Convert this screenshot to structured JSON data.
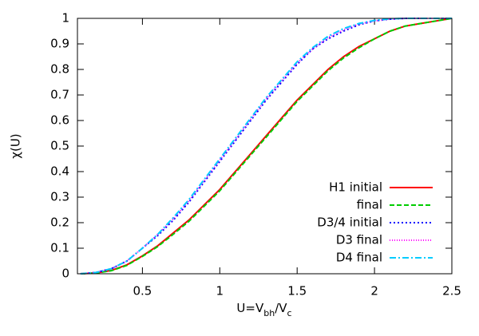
{
  "chart_data": {
    "type": "line",
    "ylabel": "χ(U)",
    "xlabel": [
      "U=V",
      "bh",
      "/V",
      "c"
    ],
    "x": [
      0.1,
      0.2,
      0.3,
      0.4,
      0.5,
      0.6,
      0.7,
      0.8,
      0.9,
      1.0,
      1.1,
      1.2,
      1.3,
      1.4,
      1.5,
      1.6,
      1.7,
      1.8,
      1.9,
      2.0,
      2.1,
      2.2,
      2.3,
      2.4,
      2.5
    ],
    "series": [
      {
        "name": "H1 initial",
        "color": "#ff0000",
        "style": "solid",
        "values": [
          0,
          0.003,
          0.013,
          0.035,
          0.07,
          0.11,
          0.16,
          0.21,
          0.27,
          0.33,
          0.4,
          0.47,
          0.54,
          0.61,
          0.68,
          0.74,
          0.8,
          0.85,
          0.89,
          0.92,
          0.95,
          0.97,
          0.98,
          0.99,
          1.0
        ]
      },
      {
        "name": "final",
        "color": "#00cc00",
        "style": "dashed",
        "values": [
          0,
          0.003,
          0.012,
          0.033,
          0.068,
          0.107,
          0.155,
          0.205,
          0.265,
          0.325,
          0.395,
          0.465,
          0.535,
          0.605,
          0.675,
          0.735,
          0.795,
          0.845,
          0.885,
          0.92,
          0.95,
          0.97,
          0.98,
          0.99,
          1.0
        ]
      },
      {
        "name": "D3/4 initial",
        "color": "#0000ff",
        "style": "dotted",
        "values": [
          0,
          0.005,
          0.02,
          0.05,
          0.1,
          0.15,
          0.21,
          0.28,
          0.36,
          0.44,
          0.52,
          0.6,
          0.68,
          0.75,
          0.82,
          0.88,
          0.92,
          0.95,
          0.975,
          0.99,
          0.997,
          1,
          1,
          1,
          1
        ]
      },
      {
        "name": "D3 final",
        "color": "#ff00ff",
        "style": "finedot",
        "values": [
          0,
          0.005,
          0.02,
          0.05,
          0.1,
          0.155,
          0.215,
          0.285,
          0.365,
          0.445,
          0.525,
          0.605,
          0.685,
          0.755,
          0.825,
          0.88,
          0.925,
          0.955,
          0.978,
          0.99,
          0.997,
          1,
          1,
          1,
          1
        ]
      },
      {
        "name": "D4 final",
        "color": "#00ccff",
        "style": "dashdot",
        "values": [
          0,
          0.005,
          0.02,
          0.05,
          0.1,
          0.155,
          0.22,
          0.29,
          0.37,
          0.45,
          0.53,
          0.61,
          0.69,
          0.76,
          0.83,
          0.885,
          0.93,
          0.96,
          0.98,
          0.992,
          0.998,
          1,
          1,
          1,
          1
        ]
      }
    ],
    "xlim": [
      0.08,
      2.5
    ],
    "ylim": [
      0,
      1
    ],
    "xticks": [
      0.5,
      1,
      1.5,
      2,
      2.5
    ],
    "yticks": [
      0,
      0.1,
      0.2,
      0.3,
      0.4,
      0.5,
      0.6,
      0.7,
      0.8,
      0.9,
      1
    ],
    "legend": "lower right"
  }
}
